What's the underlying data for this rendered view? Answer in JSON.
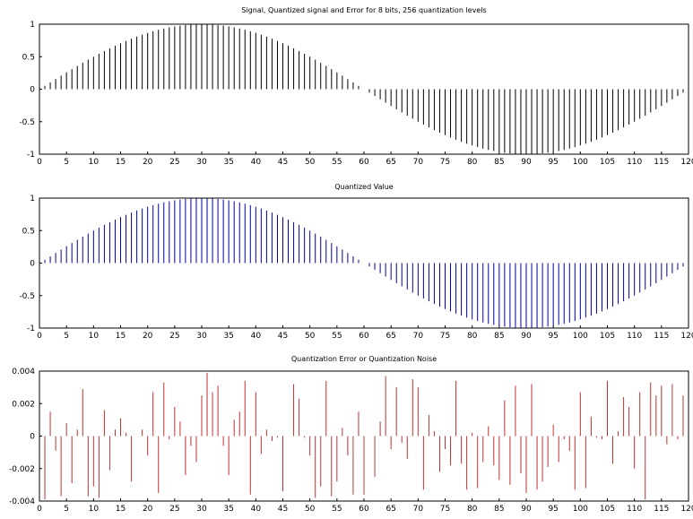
{
  "chart_data": [
    {
      "type": "stem",
      "title": "Signal, Quantized signal and Error for 8 bits, 256 quantization levels",
      "xlabel": "",
      "ylabel": "",
      "color": "#000000",
      "xlim": [
        0,
        120
      ],
      "ylim": [
        -1,
        1
      ],
      "xticks": [
        0,
        5,
        10,
        15,
        20,
        25,
        30,
        35,
        40,
        45,
        50,
        55,
        60,
        65,
        70,
        75,
        80,
        85,
        90,
        95,
        100,
        105,
        110,
        115,
        120
      ],
      "yticks": [
        1,
        0.5,
        0,
        -0.5,
        -1
      ],
      "ytick_labels": [
        "1",
        "0.5",
        "0",
        "-0.5",
        "-1"
      ],
      "grid": false,
      "x": [
        1,
        2,
        3,
        4,
        5,
        6,
        7,
        8,
        9,
        10,
        11,
        12,
        13,
        14,
        15,
        16,
        17,
        18,
        19,
        20,
        21,
        22,
        23,
        24,
        25,
        26,
        27,
        28,
        29,
        30,
        31,
        32,
        33,
        34,
        35,
        36,
        37,
        38,
        39,
        40,
        41,
        42,
        43,
        44,
        45,
        46,
        47,
        48,
        49,
        50,
        51,
        52,
        53,
        54,
        55,
        56,
        57,
        58,
        59,
        60,
        61,
        62,
        63,
        64,
        65,
        66,
        67,
        68,
        69,
        70,
        71,
        72,
        73,
        74,
        75,
        76,
        77,
        78,
        79,
        80,
        81,
        82,
        83,
        84,
        85,
        86,
        87,
        88,
        89,
        90,
        91,
        92,
        93,
        94,
        95,
        96,
        97,
        98,
        99,
        100,
        101,
        102,
        103,
        104,
        105,
        106,
        107,
        108,
        109,
        110,
        111,
        112,
        113,
        114,
        115,
        116,
        117,
        118,
        119
      ],
      "values": [
        0.052,
        0.104,
        0.156,
        0.208,
        0.259,
        0.309,
        0.358,
        0.407,
        0.454,
        0.5,
        0.545,
        0.588,
        0.629,
        0.669,
        0.707,
        0.743,
        0.777,
        0.809,
        0.839,
        0.866,
        0.891,
        0.914,
        0.934,
        0.951,
        0.966,
        0.978,
        0.988,
        0.995,
        0.999,
        1.0,
        0.999,
        0.995,
        0.988,
        0.978,
        0.966,
        0.951,
        0.934,
        0.914,
        0.891,
        0.866,
        0.839,
        0.809,
        0.777,
        0.743,
        0.707,
        0.669,
        0.629,
        0.588,
        0.545,
        0.5,
        0.454,
        0.407,
        0.358,
        0.309,
        0.259,
        0.208,
        0.156,
        0.104,
        0.052,
        0.0,
        -0.052,
        -0.104,
        -0.156,
        -0.208,
        -0.259,
        -0.309,
        -0.358,
        -0.407,
        -0.454,
        -0.5,
        -0.545,
        -0.588,
        -0.629,
        -0.669,
        -0.707,
        -0.743,
        -0.777,
        -0.809,
        -0.839,
        -0.866,
        -0.891,
        -0.914,
        -0.934,
        -0.951,
        -0.966,
        -0.978,
        -0.988,
        -0.995,
        -0.999,
        -1.0,
        -0.999,
        -0.995,
        -0.988,
        -0.978,
        -0.966,
        -0.951,
        -0.934,
        -0.914,
        -0.891,
        -0.866,
        -0.839,
        -0.809,
        -0.777,
        -0.743,
        -0.707,
        -0.669,
        -0.629,
        -0.588,
        -0.545,
        -0.5,
        -0.454,
        -0.407,
        -0.358,
        -0.309,
        -0.259,
        -0.208,
        -0.156,
        -0.104,
        -0.052
      ]
    },
    {
      "type": "stem",
      "title": "Quantized Value",
      "xlabel": "",
      "ylabel": "",
      "color": "#0000a8",
      "xlim": [
        0,
        120
      ],
      "ylim": [
        -1,
        1
      ],
      "xticks": [
        0,
        5,
        10,
        15,
        20,
        25,
        30,
        35,
        40,
        45,
        50,
        55,
        60,
        65,
        70,
        75,
        80,
        85,
        90,
        95,
        100,
        105,
        110,
        115,
        120
      ],
      "yticks": [
        1,
        0.5,
        0,
        -0.5,
        -1
      ],
      "ytick_labels": [
        "1",
        "0.5",
        "0",
        "-0.5",
        "-1"
      ],
      "grid": false,
      "x": [
        1,
        2,
        3,
        4,
        5,
        6,
        7,
        8,
        9,
        10,
        11,
        12,
        13,
        14,
        15,
        16,
        17,
        18,
        19,
        20,
        21,
        22,
        23,
        24,
        25,
        26,
        27,
        28,
        29,
        30,
        31,
        32,
        33,
        34,
        35,
        36,
        37,
        38,
        39,
        40,
        41,
        42,
        43,
        44,
        45,
        46,
        47,
        48,
        49,
        50,
        51,
        52,
        53,
        54,
        55,
        56,
        57,
        58,
        59,
        60,
        61,
        62,
        63,
        64,
        65,
        66,
        67,
        68,
        69,
        70,
        71,
        72,
        73,
        74,
        75,
        76,
        77,
        78,
        79,
        80,
        81,
        82,
        83,
        84,
        85,
        86,
        87,
        88,
        89,
        90,
        91,
        92,
        93,
        94,
        95,
        96,
        97,
        98,
        99,
        100,
        101,
        102,
        103,
        104,
        105,
        106,
        107,
        108,
        109,
        110,
        111,
        112,
        113,
        114,
        115,
        116,
        117,
        118,
        119
      ],
      "values": [
        0.052,
        0.104,
        0.156,
        0.208,
        0.259,
        0.309,
        0.358,
        0.407,
        0.454,
        0.5,
        0.545,
        0.588,
        0.629,
        0.669,
        0.707,
        0.743,
        0.777,
        0.809,
        0.839,
        0.866,
        0.891,
        0.914,
        0.934,
        0.951,
        0.966,
        0.978,
        0.988,
        0.995,
        0.999,
        1.0,
        0.999,
        0.995,
        0.988,
        0.978,
        0.966,
        0.951,
        0.934,
        0.914,
        0.891,
        0.866,
        0.839,
        0.809,
        0.777,
        0.743,
        0.707,
        0.669,
        0.629,
        0.588,
        0.545,
        0.5,
        0.454,
        0.407,
        0.358,
        0.309,
        0.259,
        0.208,
        0.156,
        0.104,
        0.052,
        0.0,
        -0.052,
        -0.104,
        -0.156,
        -0.208,
        -0.259,
        -0.309,
        -0.358,
        -0.407,
        -0.454,
        -0.5,
        -0.545,
        -0.588,
        -0.629,
        -0.669,
        -0.707,
        -0.743,
        -0.777,
        -0.809,
        -0.839,
        -0.866,
        -0.891,
        -0.914,
        -0.934,
        -0.951,
        -0.966,
        -0.978,
        -0.988,
        -0.995,
        -0.999,
        -1.0,
        -0.999,
        -0.995,
        -0.988,
        -0.978,
        -0.966,
        -0.951,
        -0.934,
        -0.914,
        -0.891,
        -0.866,
        -0.839,
        -0.809,
        -0.777,
        -0.743,
        -0.707,
        -0.669,
        -0.629,
        -0.588,
        -0.545,
        -0.5,
        -0.454,
        -0.407,
        -0.358,
        -0.309,
        -0.259,
        -0.208,
        -0.156,
        -0.104,
        -0.052
      ]
    },
    {
      "type": "stem",
      "title": "Quantization Error or Quantization Noise",
      "xlabel": "",
      "ylabel": "",
      "color": "#c03030",
      "xlim": [
        0,
        120
      ],
      "ylim": [
        -0.004,
        0.004
      ],
      "xticks": [
        0,
        5,
        10,
        15,
        20,
        25,
        30,
        35,
        40,
        45,
        50,
        55,
        60,
        65,
        70,
        75,
        80,
        85,
        90,
        95,
        100,
        105,
        110,
        115,
        120
      ],
      "yticks": [
        0.004,
        0.002,
        0,
        -0.002,
        -0.004
      ],
      "ytick_labels": [
        "0.004",
        "0.002",
        "0",
        "-0.002",
        "-0.004"
      ],
      "grid": false,
      "x": [
        1,
        2,
        3,
        4,
        5,
        6,
        7,
        8,
        9,
        10,
        11,
        12,
        13,
        14,
        15,
        16,
        17,
        18,
        19,
        20,
        21,
        22,
        23,
        24,
        25,
        26,
        27,
        28,
        29,
        30,
        31,
        32,
        33,
        34,
        35,
        36,
        37,
        38,
        39,
        40,
        41,
        42,
        43,
        44,
        45,
        46,
        47,
        48,
        49,
        50,
        51,
        52,
        53,
        54,
        55,
        56,
        57,
        58,
        59,
        60,
        61,
        62,
        63,
        64,
        65,
        66,
        67,
        68,
        69,
        70,
        71,
        72,
        73,
        74,
        75,
        76,
        77,
        78,
        79,
        80,
        81,
        82,
        83,
        84,
        85,
        86,
        87,
        88,
        89,
        90,
        91,
        92,
        93,
        94,
        95,
        96,
        97,
        98,
        99,
        100,
        101,
        102,
        103,
        104,
        105,
        106,
        107,
        108,
        109,
        110,
        111,
        112,
        113,
        114,
        115,
        116,
        117,
        118,
        119
      ],
      "values": [
        -0.0039,
        0.0015,
        -0.0009,
        -0.0037,
        0.0008,
        -0.0029,
        0.0004,
        0.0029,
        -0.0037,
        -0.0031,
        -0.0038,
        0.0016,
        -0.0021,
        0.0004,
        0.0011,
        0.0002,
        -0.0028,
        0.0,
        0.0004,
        -0.0012,
        0.0027,
        -0.0035,
        0.0033,
        -0.0002,
        0.0018,
        0.0009,
        -0.0024,
        -0.0006,
        -0.0016,
        0.0025,
        0.0039,
        0.0027,
        0.0031,
        -0.0006,
        -0.0024,
        0.001,
        0.0015,
        0.0034,
        -0.0036,
        0.0027,
        -0.0011,
        0.0004,
        -0.0003,
        -0.0001,
        -0.0034,
        0.0,
        0.0032,
        0.0023,
        -0.0001,
        -0.0012,
        -0.0038,
        -0.0031,
        0.0034,
        -0.0037,
        -0.0028,
        0.0005,
        -0.0012,
        -0.0036,
        0.0015,
        -0.0036,
        0.0,
        -0.0025,
        0.0009,
        0.0037,
        -0.0008,
        0.003,
        -0.0004,
        -0.0014,
        0.0035,
        0.003,
        -0.0033,
        0.0013,
        0.0003,
        -0.0022,
        -0.0008,
        -0.0018,
        0.0034,
        -0.0017,
        -0.0033,
        0.0002,
        -0.0032,
        -0.0016,
        0.0006,
        -0.0018,
        -0.0027,
        0.0022,
        -0.003,
        0.0031,
        -0.0023,
        -0.0035,
        0.0032,
        -0.0033,
        -0.0028,
        -0.0019,
        0.0007,
        -0.0016,
        -0.0002,
        -0.0009,
        -0.0033,
        0.0027,
        -0.0032,
        0.0012,
        -0.0001,
        -0.0002,
        0.0034,
        -0.0017,
        0.0003,
        0.0024,
        0.0018,
        -0.002,
        0.0027,
        -0.0039,
        0.0033,
        0.0025,
        0.0031,
        -0.0005,
        0.0032,
        -0.0002,
        0.0025
      ]
    }
  ]
}
